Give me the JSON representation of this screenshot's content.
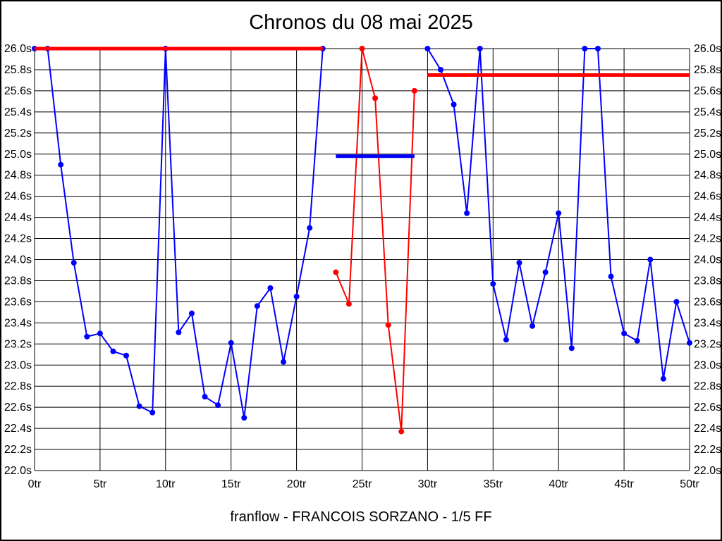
{
  "page": {
    "title": "Chronos du 08 mai 2025",
    "footer": "franflow - FRANCOIS SORZANO - 1/5 FF"
  },
  "colors": {
    "series_blue": "#0000FF",
    "series_red": "#FF0000",
    "grid": "#000000",
    "background": "#FFFFFF",
    "text": "#000000"
  },
  "chart_data": {
    "type": "line",
    "title": "Chronos du 08 mai 2025",
    "xlabel": "",
    "ylabel": "",
    "x_unit": "tr",
    "y_unit": "s",
    "xlim": [
      0,
      50
    ],
    "ylim": [
      22.0,
      26.0
    ],
    "grid": true,
    "legend": "none",
    "x_ticks": [
      0,
      5,
      10,
      15,
      20,
      25,
      30,
      35,
      40,
      45,
      50
    ],
    "x_tick_labels": [
      "0tr",
      "5tr",
      "10tr",
      "15tr",
      "20tr",
      "25tr",
      "30tr",
      "35tr",
      "40tr",
      "45tr",
      "50tr"
    ],
    "y_ticks": [
      26.0,
      25.8,
      25.6,
      25.4,
      25.2,
      25.0,
      24.8,
      24.6,
      24.4,
      24.2,
      24.0,
      23.8,
      23.6,
      23.4,
      23.2,
      23.0,
      22.8,
      22.6,
      22.4,
      22.2,
      22.0
    ],
    "y_tick_labels": [
      "26.0s",
      "25.8s",
      "25.6s",
      "25.4s",
      "25.2s",
      "25.0s",
      "24.8s",
      "24.6s",
      "24.4s",
      "24.2s",
      "24.0s",
      "23.8s",
      "23.6s",
      "23.4s",
      "23.2s",
      "23.0s",
      "22.8s",
      "22.6s",
      "22.4s",
      "22.2s",
      "22.0s"
    ],
    "y_labels_on_both_sides": true,
    "series": [
      {
        "name": "lap-times-blue-segment-1",
        "color": "blue",
        "x": [
          0,
          1,
          2,
          3,
          4,
          5,
          6,
          7,
          8,
          9,
          10,
          11,
          12,
          13,
          14,
          15,
          16,
          17,
          18,
          19,
          20,
          21,
          22
        ],
        "values": [
          26.0,
          26.0,
          24.9,
          23.97,
          23.27,
          23.3,
          23.13,
          23.09,
          22.61,
          22.55,
          26.0,
          23.31,
          23.49,
          22.7,
          22.62,
          23.21,
          22.5,
          23.56,
          23.73,
          23.03,
          23.65,
          24.3,
          26.0
        ]
      },
      {
        "name": "lap-times-red-segment",
        "color": "red",
        "x": [
          23,
          24,
          25,
          26,
          27,
          28,
          29
        ],
        "values": [
          23.88,
          23.58,
          26.0,
          25.53,
          23.38,
          22.37,
          25.6
        ]
      },
      {
        "name": "lap-times-blue-segment-2",
        "color": "blue",
        "x": [
          30,
          31,
          32,
          33,
          34,
          35,
          36,
          37,
          38,
          39,
          40,
          41,
          42,
          43,
          44,
          45,
          46,
          47,
          48,
          49,
          50
        ],
        "values": [
          26.0,
          25.8,
          25.47,
          24.44,
          26.0,
          23.77,
          23.24,
          23.97,
          23.37,
          23.88,
          24.44,
          23.16,
          26.0,
          26.0,
          23.84,
          23.3,
          23.23,
          24.0,
          22.87,
          23.6,
          23.21
        ]
      }
    ],
    "reference_lines": [
      {
        "name": "red-ref-line-1",
        "color": "red",
        "y": 26.0,
        "x_start": 0,
        "x_end": 22
      },
      {
        "name": "red-ref-line-2",
        "color": "red",
        "y": 25.75,
        "x_start": 30,
        "x_end": 50
      },
      {
        "name": "blue-ref-line",
        "color": "blue",
        "y": 24.98,
        "x_start": 23,
        "x_end": 29
      }
    ]
  }
}
